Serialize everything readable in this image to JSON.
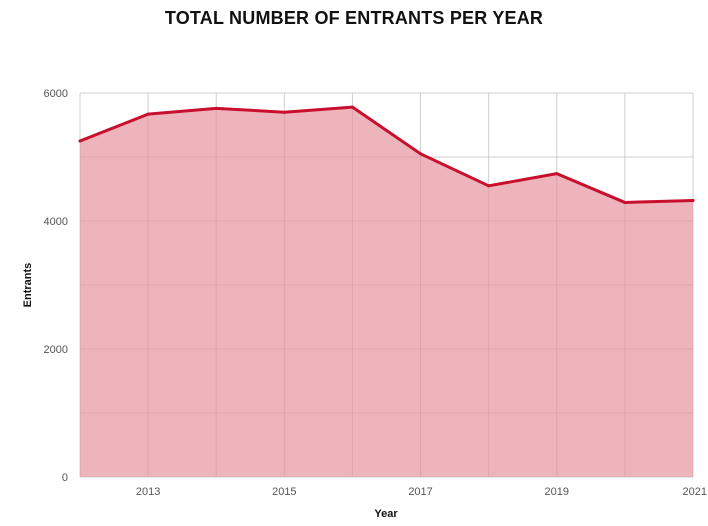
{
  "chart_data": {
    "type": "area",
    "title": "TOTAL NUMBER OF ENTRANTS PER YEAR",
    "xlabel": "Year",
    "ylabel": "Entrants",
    "x": [
      2012,
      2013,
      2014,
      2015,
      2016,
      2017,
      2018,
      2019,
      2020,
      2021
    ],
    "series": [
      {
        "values": [
          5250,
          5670,
          5760,
          5700,
          5780,
          5050,
          4550,
          4740,
          4290,
          4320
        ]
      }
    ],
    "xlim": [
      2012,
      2021
    ],
    "ylim": [
      0,
      6000
    ],
    "x_ticks": [
      2013,
      2015,
      2017,
      2019,
      2021
    ],
    "y_ticks": [
      0,
      2000,
      4000,
      6000
    ],
    "grid": true,
    "colors": {
      "line": "#c8102e",
      "fill": "#edb0b7",
      "grid": "#e0e0e0"
    }
  }
}
